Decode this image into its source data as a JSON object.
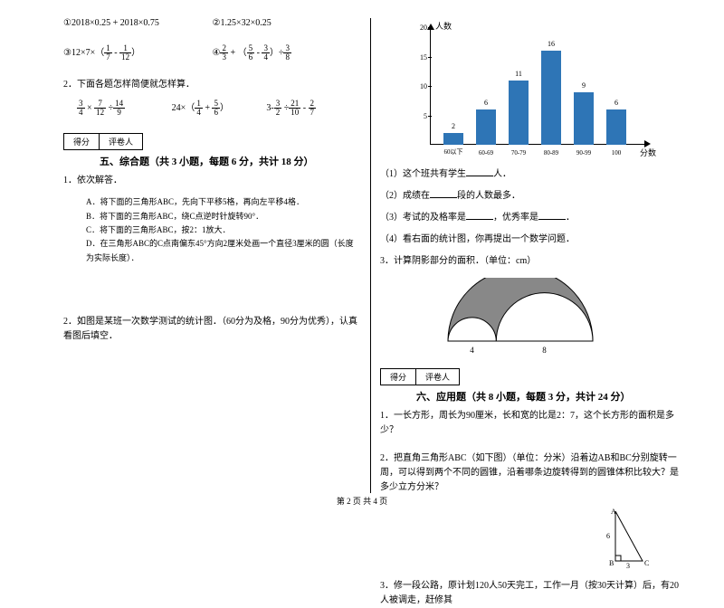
{
  "left": {
    "eq1_label": "①",
    "eq1": "2018×0.25 + 2018×0.75",
    "eq2_label": "②",
    "eq2": "1.25×32×0.25",
    "eq3_label": "③",
    "eq3_pre": "12×7×（",
    "eq3_f1n": "1",
    "eq3_f1d": "7",
    "eq3_mid": " - ",
    "eq3_f2n": "1",
    "eq3_f2d": "12",
    "eq3_post": "）",
    "eq4_label": "④",
    "eq4_f1n": "2",
    "eq4_f1d": "3",
    "eq4_m1": " + （",
    "eq4_f2n": "5",
    "eq4_f2d": "6",
    "eq4_m2": " - ",
    "eq4_f3n": "3",
    "eq4_f3d": "4",
    "eq4_m3": "）÷",
    "eq4_f4n": "3",
    "eq4_f4d": "8",
    "q2": "2．下面各题怎样简便就怎样算．",
    "s2a_f1n": "3",
    "s2a_f1d": "4",
    "s2a_m1": " × ",
    "s2a_f2n": "7",
    "s2a_f2d": "12",
    "s2a_m2": " ÷",
    "s2a_f3n": "14",
    "s2a_f3d": "9",
    "s2b_pre": "24×（",
    "s2b_f1n": "1",
    "s2b_f1d": "4",
    "s2b_m1": " + ",
    "s2b_f2n": "5",
    "s2b_f2d": "6",
    "s2b_post": "）",
    "s2c_pre": "3-",
    "s2c_f1n": "3",
    "s2c_f1d": "2",
    "s2c_m1": " ÷",
    "s2c_f2n": "21",
    "s2c_f2d": "10",
    "s2c_m2": " - ",
    "s2c_f3n": "2",
    "s2c_f3d": "7",
    "score1": "得分",
    "score2": "评卷人",
    "section5": "五、综合题（共 3 小题，每题 6 分，共计 18 分）",
    "q5_1": "1．依次解答．",
    "q5_1a": "A．将下面的三角形ABC，先向下平移5格，再向左平移4格．",
    "q5_1b": "B．将下面的三角形ABC，绕C点逆时针旋转90°．",
    "q5_1c": "C．将下面的三角形ABC，按2：1放大．",
    "q5_1d": "D．在三角形ABC的C点南偏东45°方向2厘米处画一个直径3厘米的圆（长度为实际长度）．",
    "q5_2": "2．如图是某班一次数学测试的统计图．（60分为及格，90分为优秀），认真看图后填空．"
  },
  "right": {
    "chart": {
      "ylabel": "人数",
      "xlabel": "分数",
      "yticks": [
        5,
        10,
        15,
        20
      ],
      "bars": [
        {
          "x": 0,
          "val": 2,
          "label": "60以下"
        },
        {
          "x": 1,
          "val": 6,
          "label": "60-69"
        },
        {
          "x": 2,
          "val": 11,
          "label": "70-79"
        },
        {
          "x": 3,
          "val": 16,
          "label": "80-89"
        },
        {
          "x": 4,
          "val": 9,
          "label": "90-99"
        },
        {
          "x": 5,
          "val": 6,
          "label": "100"
        }
      ],
      "bar_color": "#2e75b6",
      "ymax": 20
    },
    "c1": "（1）这个班共有学生",
    "c1_post": "人．",
    "c2": "（2）成绩在",
    "c2_post": "段的人数最多．",
    "c3": "（3）考试的及格率是",
    "c3_mid": "，优秀率是",
    "c3_post": "．",
    "c4": "（4）看右面的统计图，你再提出一个数学问题．",
    "q3": "3．计算阴影部分的面积．（单位：cm）",
    "arc_label1": "4",
    "arc_label2": "8",
    "score1": "得分",
    "score2": "评卷人",
    "section6": "六、应用题（共 8 小题，每题 3 分，共计 24 分）",
    "q6_1": "1．一长方形，周长为90厘米，长和宽的比是2：7，这个长方形的面积是多少？",
    "q6_2": "2．把直角三角形ABC（如下图）（单位：分米）沿着边AB和BC分别旋转一周，可以得到两个不同的圆锥，沿着哪条边旋转得到的圆锥体积比较大？是多少立方分米？",
    "tri_a": "A",
    "tri_b": "B",
    "tri_c": "C",
    "tri_ab": "6",
    "tri_bc": "3",
    "q6_3": "3．修一段公路，原计划120人50天完工，工作一月（按30天计算）后，有20人被调走，赶修其"
  },
  "footer": "第 2 页 共 4 页"
}
